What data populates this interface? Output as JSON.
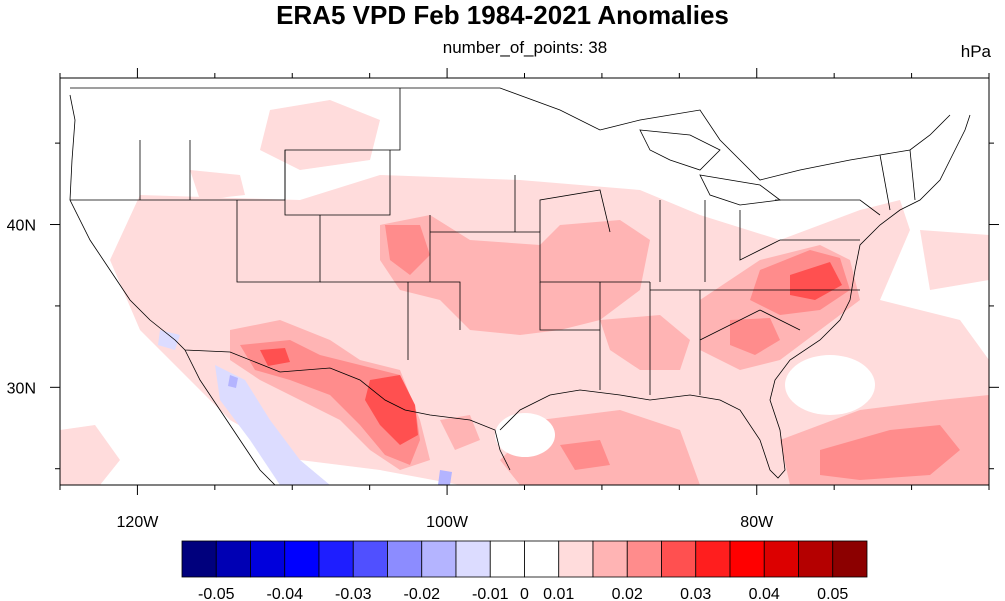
{
  "title": "ERA5 VPD Feb 1984-2021 Anomalies",
  "subtitle": "number_of_points: 38",
  "units": "hPa",
  "map": {
    "projection": "cylindrical equidistant",
    "lon_range": [
      -125,
      -65
    ],
    "lat_range": [
      24,
      49
    ],
    "lon_ticks": [
      {
        "label": "120W",
        "value": -120
      },
      {
        "label": "100W",
        "value": -100
      },
      {
        "label": "80W",
        "value": -80
      }
    ],
    "lat_ticks": [
      {
        "label": "40N",
        "value": 40
      },
      {
        "label": "30N",
        "value": 30
      }
    ],
    "field": "VPD anomaly",
    "field_units": "hPa"
  },
  "colorbar": {
    "colors": [
      "#00007d",
      "#0000b4",
      "#0000dc",
      "#0000ff",
      "#1e1eff",
      "#5050ff",
      "#8c8cff",
      "#b4b4ff",
      "#dcdcff",
      "#ffffff",
      "#ffffff",
      "#ffdcdc",
      "#ffb4b4",
      "#ff8c8c",
      "#ff5050",
      "#ff1e1e",
      "#ff0000",
      "#dc0000",
      "#b40000",
      "#8c0000"
    ],
    "labels": [
      "-0.05",
      "-0.04",
      "-0.03",
      "-0.02",
      "-0.01",
      "0",
      "0.01",
      "0.02",
      "0.03",
      "0.04",
      "0.05"
    ]
  }
}
